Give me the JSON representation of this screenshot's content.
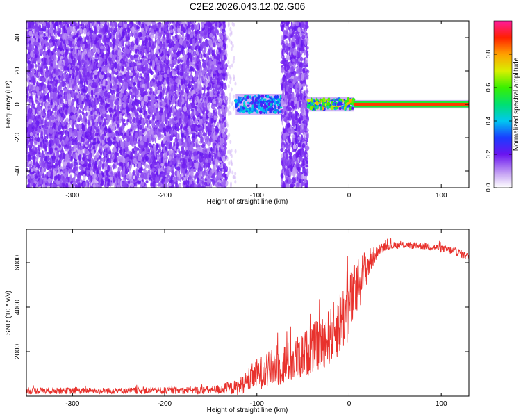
{
  "figure": {
    "title": "C2E2.2026.043.12.02.G06"
  },
  "chart_data": [
    {
      "type": "heatmap",
      "name": "spectrogram",
      "xlabel": "Height of straight line (km)",
      "ylabel": "Frequency (Hz)",
      "xlim": [
        -350,
        130
      ],
      "ylim": [
        -50,
        50
      ],
      "xticks": [
        -300,
        -200,
        -100,
        0,
        100
      ],
      "yticks": [
        -40,
        -20,
        0,
        20,
        40
      ],
      "grid": false,
      "regions": [
        {
          "x": [
            -350,
            -133
          ],
          "kind": "broadband_noise",
          "amplitude": [
            0.0,
            0.15
          ],
          "note": "diffuse purple speckle across all frequencies"
        },
        {
          "x": [
            -133,
            -123
          ],
          "kind": "fading_noise",
          "amplitude": [
            0.0,
            0.05
          ]
        },
        {
          "x": [
            -123,
            -73
          ],
          "kind": "signal_band",
          "center_hz": 0,
          "half_width_hz": 5,
          "amplitude": [
            0.2,
            0.45
          ]
        },
        {
          "x": [
            -73,
            -45
          ],
          "kind": "broadband_noise",
          "amplitude": [
            0.0,
            0.15
          ]
        },
        {
          "x": [
            -45,
            5
          ],
          "kind": "signal_band",
          "center_hz": 0,
          "half_width_hz": 3,
          "amplitude": [
            0.2,
            0.8
          ]
        },
        {
          "x": [
            5,
            130
          ],
          "kind": "carrier_line",
          "center_hz": 0,
          "half_width_hz": 1.5,
          "amplitude": [
            0.85,
            1.0
          ]
        }
      ],
      "colorbar": {
        "label": "Normalized spectral amplitude",
        "range": [
          0,
          1
        ],
        "ticks": [
          0.0,
          0.2,
          0.4,
          0.6,
          0.8
        ]
      }
    },
    {
      "type": "line",
      "name": "snr",
      "xlabel": "Height of straight line (km)",
      "ylabel": "SNR (10 * v/v)",
      "xlim": [
        -350,
        130
      ],
      "ylim": [
        0,
        7500
      ],
      "xticks": [
        -300,
        -200,
        -100,
        0,
        100
      ],
      "yticks": [
        2000,
        4000,
        6000
      ],
      "grid": false,
      "series": [
        {
          "name": "SNR",
          "color": "#e8312c",
          "x": [
            -350,
            -300,
            -250,
            -200,
            -150,
            -120,
            -100,
            -80,
            -60,
            -40,
            -20,
            -10,
            0,
            10,
            20,
            30,
            40,
            60,
            80,
            100,
            120,
            130
          ],
          "y": [
            250,
            240,
            240,
            250,
            270,
            400,
            1000,
            1300,
            1600,
            2100,
            2700,
            3300,
            4000,
            5000,
            5900,
            6450,
            6750,
            6800,
            6750,
            6650,
            6450,
            6250
          ],
          "noise_amplitude": [
            150,
            140,
            140,
            150,
            180,
            350,
            700,
            900,
            1000,
            1100,
            1300,
            1500,
            1500,
            1300,
            800,
            250,
            180,
            150,
            150,
            170,
            180,
            180
          ]
        }
      ]
    }
  ]
}
